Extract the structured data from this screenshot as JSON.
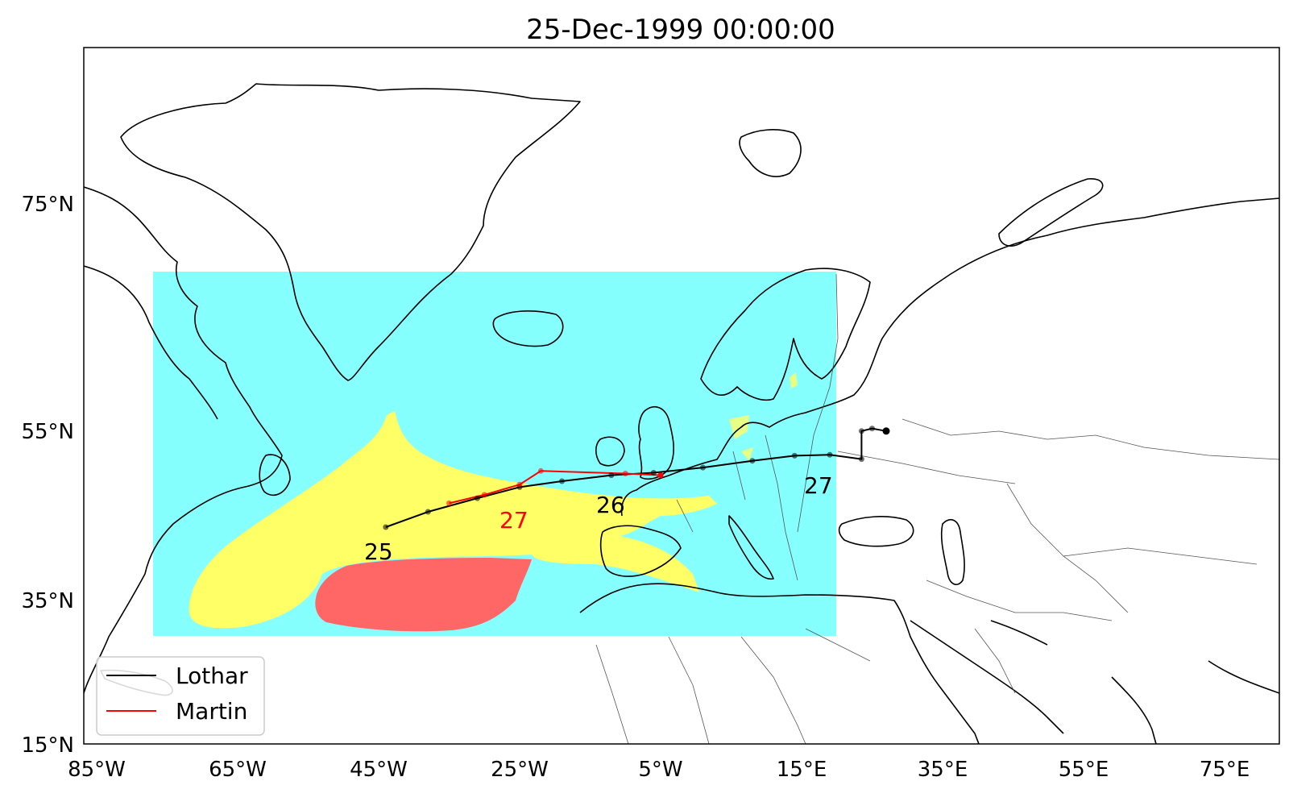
{
  "title": "25-Dec-1999 00:00:00",
  "lon_ticks": [
    "85°W",
    "65°W",
    "45°W",
    "25°W",
    "5°W",
    "15°E",
    "35°E",
    "55°E",
    "75°E"
  ],
  "lat_ticks": [
    "75°N",
    "55°N",
    "35°N",
    "15°N"
  ],
  "legend": [
    {
      "name": "Lothar",
      "color": "#000000"
    },
    {
      "name": "Martin",
      "color": "#ff0000"
    }
  ],
  "track_labels": [
    {
      "text": "25",
      "color": "#000000"
    },
    {
      "text": "26",
      "color": "#000000"
    },
    {
      "text": "27",
      "color": "#000000"
    },
    {
      "text": "27",
      "color": "#ff0000"
    }
  ],
  "colors": {
    "field_background": "#80ffff",
    "field_mid": "#ffff66",
    "field_high": "#ff6666",
    "lothar": "#000000",
    "martin": "#ff0000"
  },
  "chart_data": {
    "type": "map",
    "lon_range": [
      "85°W",
      "85°E"
    ],
    "lat_range": [
      "15°N",
      "84°N"
    ],
    "series": [
      {
        "name": "Lothar",
        "points": [
          [
            -44,
            40.5
          ],
          [
            -38,
            42.3
          ],
          [
            -31,
            43.9
          ],
          [
            -25,
            45.2
          ],
          [
            -19,
            45.9
          ],
          [
            -12,
            46.6
          ],
          [
            -6,
            46.9
          ],
          [
            1,
            47.5
          ],
          [
            8,
            48.3
          ],
          [
            14,
            48.9
          ],
          [
            19,
            49.0
          ],
          [
            23.5,
            48.5
          ],
          [
            23.5,
            51.8
          ],
          [
            25,
            52.1
          ],
          [
            27,
            51.8
          ]
        ]
      },
      {
        "name": "Martin",
        "points": [
          [
            -35,
            43.3
          ],
          [
            -30,
            44.3
          ],
          [
            -25,
            45.5
          ],
          [
            -22,
            47.1
          ],
          [
            -10,
            46.8
          ],
          [
            -5,
            46.6
          ]
        ]
      }
    ]
  }
}
